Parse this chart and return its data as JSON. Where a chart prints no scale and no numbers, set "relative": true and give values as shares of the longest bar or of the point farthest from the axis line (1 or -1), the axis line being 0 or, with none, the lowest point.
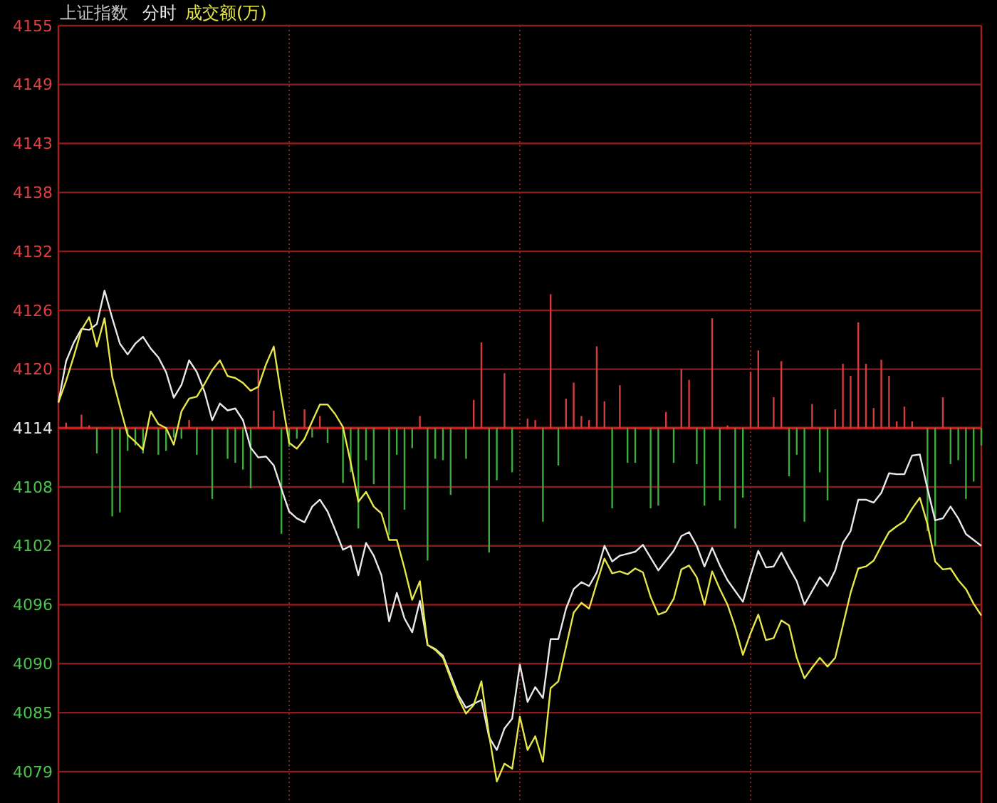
{
  "chart_data": [
    {
      "type": "line",
      "title": "上证指数",
      "grid": true,
      "tick_labels": "y",
      "categories": [
        null,
        null,
        null,
        null,
        null,
        null,
        null,
        null,
        null,
        null,
        null,
        null,
        null,
        null,
        null,
        null,
        null,
        null,
        null,
        null,
        null,
        null,
        null,
        null,
        null,
        null,
        null,
        null,
        null,
        null,
        null,
        null,
        null,
        null,
        null,
        null,
        null,
        null,
        null,
        null,
        null,
        null,
        null,
        null,
        null,
        null,
        null,
        null,
        null,
        null,
        null,
        null,
        null,
        null,
        null,
        null,
        null,
        null,
        null,
        null,
        null,
        null,
        null,
        null,
        null,
        null,
        null,
        null,
        null,
        null,
        null,
        null,
        null,
        null,
        null,
        null,
        null,
        null,
        null,
        null,
        null,
        null,
        null,
        null,
        null,
        null,
        null,
        null,
        null,
        null,
        null,
        null,
        null,
        null,
        null,
        null,
        null,
        null,
        null,
        null,
        null,
        null,
        null,
        null,
        null,
        null,
        null,
        null,
        null,
        null,
        null,
        null,
        null,
        null,
        null,
        null,
        null,
        null,
        null,
        null,
        null
      ],
      "ylim": [
        4075.8,
        4155
      ],
      "yticks": [
        4155,
        4149,
        4143,
        4138,
        4132,
        4126,
        4120,
        4114,
        4108,
        4102,
        4096,
        4090,
        4085,
        4079
      ],
      "ref_lines": [
        {
          "axis": "y",
          "value": 4114,
          "color": "#c42020"
        }
      ],
      "series": [
        {
          "name": "分时",
          "color": "#e8e8e8",
          "values": [
            4116.6,
            4120.8,
            4122.7,
            4124.1,
            4124,
            4124.6,
            4128,
            4125.2,
            4122.6,
            4121.5,
            4122.6,
            4123.3,
            4122.1,
            4121.2,
            4119.7,
            4117.1,
            4118.4,
            4120.9,
            4119.7,
            4117.7,
            4114.8,
            4116.5,
            4115.8,
            4116,
            4114.8,
            4112,
            4111,
            4111.1,
            4110.2,
            4107.8,
            4105.5,
            4104.8,
            4104.4,
            4106,
            4106.7,
            4105.5,
            4103.6,
            4101.6,
            4102,
            4099,
            4102.3,
            4101,
            4099,
            4094.3,
            4097.2,
            4094.6,
            4093.2,
            4096.4,
            4091.9,
            4091.5,
            4090.8,
            4088.8,
            4086.8,
            4085.5,
            4085.9,
            4086.3,
            4082.5,
            4081.2,
            4083.4,
            4084.4,
            4089.9,
            4086.1,
            4087.6,
            4086.5,
            4092.5,
            4092.5,
            4095.6,
            4097.6,
            4098.3,
            4097.9,
            4099.3,
            4102,
            4100.4,
            4101,
            4101.2,
            4101.4,
            4102.1,
            4100.8,
            4099.5,
            4100.5,
            4101.5,
            4103,
            4103.4,
            4102,
            4099.9,
            4101.8,
            4100,
            4098.5,
            4097.4,
            4096.3,
            4099,
            4101.5,
            4099.8,
            4099.9,
            4101.3,
            4099.8,
            4098.4,
            4096,
            4097.4,
            4098.8,
            4097.9,
            4099.5,
            4102.3,
            4103.5,
            4106.7,
            4106.7,
            4106.4,
            4107.4,
            4109.4,
            4109.3,
            4109.3,
            4111.2,
            4111.3,
            4107.8,
            4104.6,
            4104.8,
            4106,
            4104.8,
            4103.2,
            4102.6,
            4102
          ]
        },
        {
          "name": "成交额(万)",
          "color": "#e6e64a",
          "values": [
            4116.6,
            4118.8,
            4121.3,
            4124,
            4125.3,
            4122.3,
            4125.2,
            4119.2,
            4116.2,
            4113.3,
            4112.6,
            4111.8,
            4115.7,
            4114.4,
            4114,
            4112.3,
            4115.7,
            4117,
            4117.2,
            4118.5,
            4119.9,
            4120.9,
            4119.3,
            4119.1,
            4118.6,
            4117.8,
            4118.2,
            4120.5,
            4122.3,
            4117.2,
            4112.5,
            4111.9,
            4112.9,
            4114.7,
            4116.4,
            4116.4,
            4115.4,
            4114.1,
            4110.5,
            4106.5,
            4107.5,
            4106,
            4105.3,
            4102.6,
            4102.6,
            4099.7,
            4096.5,
            4098.4,
            4091.9,
            4091.4,
            4090.6,
            4088.5,
            4086.5,
            4084.9,
            4085.8,
            4088.2,
            4082.7,
            4078,
            4079.8,
            4079.3,
            4084.6,
            4081.2,
            4082.6,
            4080,
            4087.5,
            4088.2,
            4091.7,
            4095.2,
            4096.2,
            4095.6,
            4098.2,
            4100.7,
            4099.2,
            4099.4,
            4099.1,
            4099.7,
            4099.3,
            4096.8,
            4095,
            4095.3,
            4096.6,
            4099.6,
            4100,
            4098.8,
            4096,
            4099.4,
            4097.6,
            4096,
            4093.7,
            4090.9,
            4093.1,
            4095,
            4092.4,
            4092.6,
            4094.4,
            4093.9,
            4090.6,
            4088.5,
            4089.6,
            4090.6,
            4089.7,
            4090.6,
            4093.9,
            4097.2,
            4099.7,
            4099.9,
            4100.5,
            4102,
            4103.4,
            4104,
            4104.5,
            4105.8,
            4106.9,
            4104.2,
            4100.4,
            4099.6,
            4099.7,
            4098.5,
            4097.6,
            4096.1,
            4094.9
          ]
        }
      ]
    },
    {
      "type": "bar",
      "relative": true,
      "tick_labels": false,
      "categories": [
        null,
        null,
        null,
        null,
        null,
        null,
        null,
        null,
        null,
        null,
        null,
        null,
        null,
        null,
        null,
        null,
        null,
        null,
        null,
        null,
        null,
        null,
        null,
        null,
        null,
        null,
        null,
        null,
        null,
        null,
        null,
        null,
        null,
        null,
        null,
        null,
        null,
        null,
        null,
        null,
        null,
        null,
        null,
        null,
        null,
        null,
        null,
        null,
        null,
        null,
        null,
        null,
        null,
        null,
        null,
        null,
        null,
        null,
        null,
        null,
        null,
        null,
        null,
        null,
        null,
        null,
        null,
        null,
        null,
        null,
        null,
        null,
        null,
        null,
        null,
        null,
        null,
        null,
        null,
        null,
        null,
        null,
        null,
        null,
        null,
        null,
        null,
        null,
        null,
        null,
        null,
        null,
        null,
        null,
        null,
        null,
        null,
        null,
        null,
        null,
        null,
        null,
        null,
        null,
        null,
        null,
        null,
        null,
        null,
        null,
        null,
        null,
        null,
        null,
        null,
        null,
        null,
        null,
        null,
        null,
        null
      ],
      "values": [
        0,
        0.04,
        0,
        0.1,
        0.02,
        -0.19,
        0,
        -0.66,
        -0.63,
        -0.17,
        -0.13,
        -0.19,
        0,
        -0.2,
        -0.17,
        -0.07,
        -0.08,
        0.06,
        -0.2,
        0,
        -0.53,
        0,
        -0.23,
        -0.26,
        -0.31,
        -0.45,
        0.44,
        0,
        0.13,
        -0.79,
        -0.14,
        -0.08,
        0.14,
        -0.07,
        0.09,
        -0.11,
        0,
        -0.41,
        -0.33,
        -0.75,
        -0.24,
        -0.42,
        0,
        -0.8,
        -0.2,
        -0.61,
        -0.15,
        0.09,
        -0.99,
        -0.23,
        -0.24,
        -0.5,
        0,
        -0.23,
        0.21,
        0.64,
        -0.93,
        -0.39,
        0.41,
        -0.33,
        0,
        0.07,
        0.06,
        -0.7,
        1,
        -0.28,
        0.22,
        0.34,
        0.09,
        0.06,
        0.61,
        0.2,
        -0.6,
        0.32,
        -0.26,
        -0.26,
        0,
        -0.6,
        -0.58,
        0.12,
        -0.26,
        0.44,
        0.36,
        -0.27,
        -0.58,
        0.82,
        -0.54,
        0.02,
        -0.75,
        -0.52,
        0.42,
        0.58,
        0,
        0.23,
        0.5,
        -0.36,
        -0.2,
        -0.7,
        0.18,
        -0.33,
        -0.54,
        0.14,
        0.48,
        0.39,
        0.79,
        0.48,
        0.15,
        0.51,
        0.39,
        0.05,
        0.16,
        0.05,
        0,
        -0.77,
        -0.88,
        0.23,
        -0.27,
        -0.24,
        -0.53,
        -0.4,
        -0.13
      ],
      "colors": [
        "#d23c3c",
        "#d23c3c",
        "#d23c3c",
        "#d23c3c",
        "#d23c3c",
        "#3caa3c",
        "#d23c3c",
        "#3caa3c",
        "#3caa3c",
        "#3caa3c",
        "#3caa3c",
        "#3caa3c",
        "#d23c3c",
        "#3caa3c",
        "#3caa3c",
        "#3caa3c",
        "#3caa3c",
        "#d23c3c",
        "#3caa3c",
        "#d23c3c",
        "#3caa3c",
        "#d23c3c",
        "#3caa3c",
        "#3caa3c",
        "#3caa3c",
        "#3caa3c",
        "#d23c3c",
        "#d23c3c",
        "#d23c3c",
        "#3caa3c",
        "#3caa3c",
        "#3caa3c",
        "#d23c3c",
        "#3caa3c",
        "#d23c3c",
        "#3caa3c",
        "#d23c3c",
        "#3caa3c",
        "#3caa3c",
        "#3caa3c",
        "#3caa3c",
        "#3caa3c",
        "#d23c3c",
        "#3caa3c",
        "#3caa3c",
        "#3caa3c",
        "#3caa3c",
        "#d23c3c",
        "#3caa3c",
        "#3caa3c",
        "#3caa3c",
        "#3caa3c",
        "#d23c3c",
        "#3caa3c",
        "#d23c3c",
        "#d23c3c",
        "#3caa3c",
        "#3caa3c",
        "#d23c3c",
        "#3caa3c",
        "#d23c3c",
        "#d23c3c",
        "#d23c3c",
        "#3caa3c",
        "#d23c3c",
        "#3caa3c",
        "#d23c3c",
        "#d23c3c",
        "#d23c3c",
        "#d23c3c",
        "#d23c3c",
        "#d23c3c",
        "#3caa3c",
        "#d23c3c",
        "#3caa3c",
        "#3caa3c",
        "#d23c3c",
        "#3caa3c",
        "#3caa3c",
        "#d23c3c",
        "#3caa3c",
        "#d23c3c",
        "#d23c3c",
        "#3caa3c",
        "#3caa3c",
        "#d23c3c",
        "#3caa3c",
        "#d23c3c",
        "#3caa3c",
        "#3caa3c",
        "#d23c3c",
        "#d23c3c",
        "#d23c3c",
        "#d23c3c",
        "#d23c3c",
        "#3caa3c",
        "#3caa3c",
        "#3caa3c",
        "#d23c3c",
        "#3caa3c",
        "#3caa3c",
        "#d23c3c",
        "#d23c3c",
        "#d23c3c",
        "#d23c3c",
        "#d23c3c",
        "#d23c3c",
        "#d23c3c",
        "#d23c3c",
        "#d23c3c",
        "#d23c3c",
        "#d23c3c",
        "#d23c3c",
        "#3caa3c",
        "#3caa3c",
        "#d23c3c",
        "#3caa3c",
        "#3caa3c",
        "#3caa3c",
        "#3caa3c",
        "#3caa3c"
      ]
    }
  ]
}
